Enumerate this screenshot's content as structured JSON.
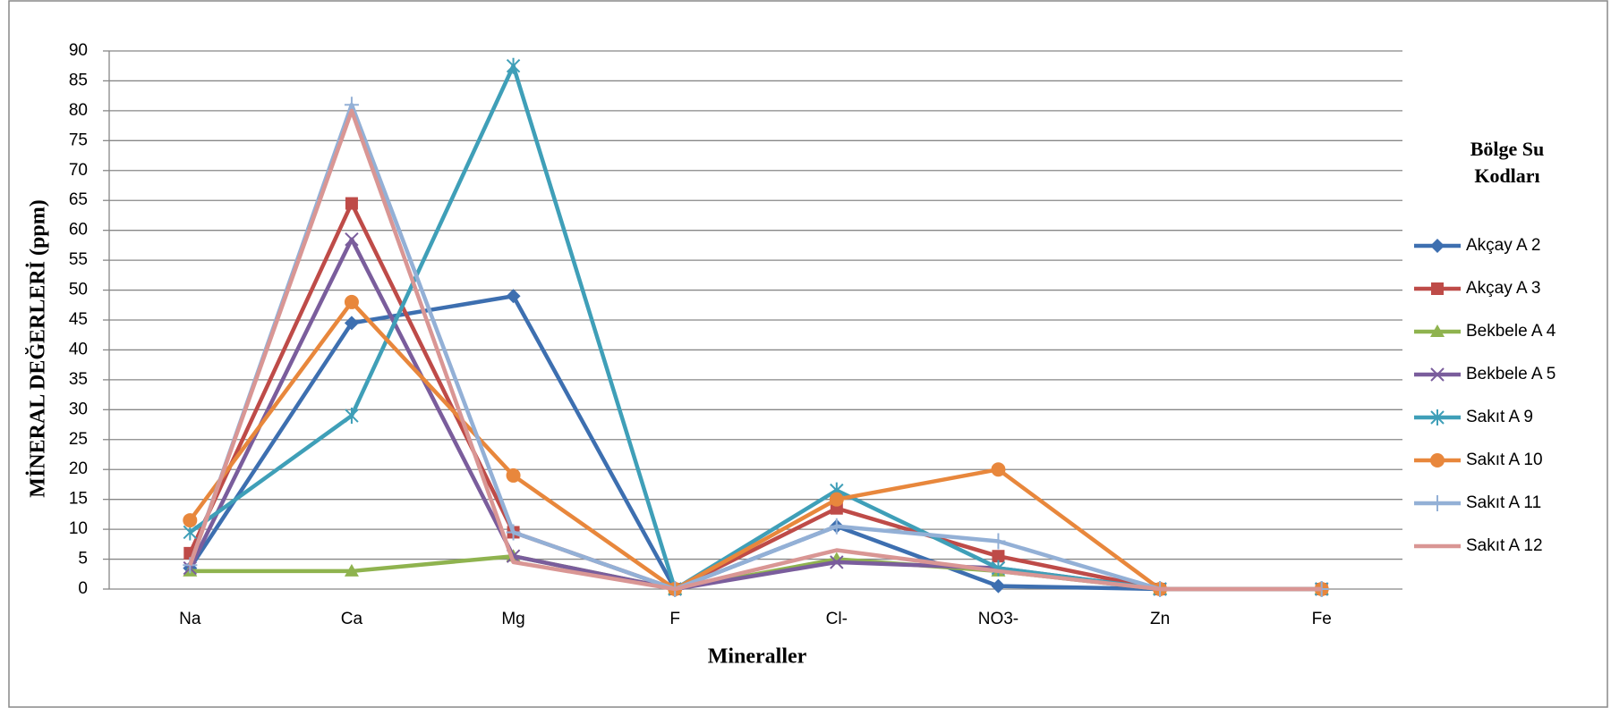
{
  "chart_data": {
    "type": "line",
    "x_label": "Mineraller",
    "y_label": "MİNERAL DEĞERLERİ  (ppm)",
    "legend_title": "Bölge Su Kodları",
    "categories": [
      "Na",
      "Ca",
      "Mg",
      "F",
      "Cl-",
      "NO3-",
      "Zn",
      "Fe"
    ],
    "ylim": [
      0,
      90
    ],
    "yticks": [
      0,
      5,
      10,
      15,
      20,
      25,
      30,
      35,
      40,
      45,
      50,
      55,
      60,
      65,
      70,
      75,
      80,
      85,
      90
    ],
    "grid": true,
    "legend": "right",
    "series": [
      {
        "name": "Akçay  A 2",
        "color": "#3d6fb0",
        "marker": "diamond",
        "values": [
          3.5,
          44.5,
          49,
          0,
          10.5,
          0.5,
          0,
          0
        ]
      },
      {
        "name": "Akçay  A 3",
        "color": "#be4b48",
        "marker": "square",
        "values": [
          6,
          64.5,
          9.5,
          0,
          13.5,
          5.5,
          0,
          0
        ]
      },
      {
        "name": "Bekbele  A 4",
        "color": "#8fb34f",
        "marker": "triangle",
        "values": [
          3,
          3,
          5.5,
          0,
          5,
          3,
          0,
          0
        ]
      },
      {
        "name": "Bekbele  A 5",
        "color": "#7a5d9c",
        "marker": "x",
        "values": [
          3.5,
          58.5,
          5.5,
          0,
          4.5,
          3.5,
          0,
          0
        ]
      },
      {
        "name": "Sakıt  A 9",
        "color": "#3f9fb8",
        "marker": "star",
        "values": [
          9.5,
          29,
          87.5,
          0,
          16.5,
          3.5,
          0,
          0
        ]
      },
      {
        "name": "Sakıt  A 10",
        "color": "#e8873c",
        "marker": "circle",
        "values": [
          11.5,
          48,
          19,
          0,
          15,
          20,
          0,
          0
        ]
      },
      {
        "name": "Sakıt  A 11",
        "color": "#93b0d6",
        "marker": "plus",
        "values": [
          4,
          81,
          9.5,
          0,
          10.5,
          8,
          0,
          0
        ]
      },
      {
        "name": "Sakıt  A 12",
        "color": "#d99694",
        "marker": "none",
        "values": [
          4,
          80,
          4.5,
          0,
          6.5,
          3,
          0,
          0
        ]
      }
    ]
  }
}
